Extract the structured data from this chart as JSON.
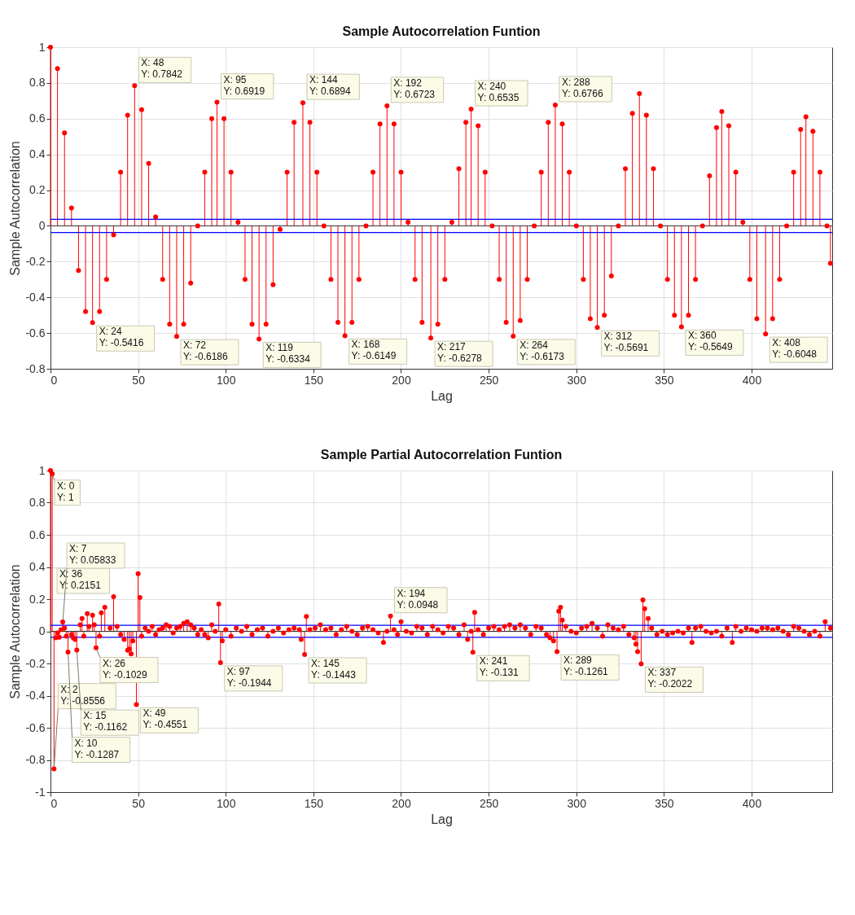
{
  "chart_data": [
    {
      "type": "lollipop",
      "title": "Sample Autocorrelation Funtion",
      "xlabel": "Lag",
      "ylabel": "Sample Autocorrelation",
      "color": "#ff0000",
      "marker": "circle",
      "grid": true,
      "xlim": [
        0,
        446
      ],
      "xticks": [
        0,
        50,
        100,
        150,
        200,
        250,
        300,
        350,
        400
      ],
      "ylim": [
        -0.8,
        1
      ],
      "yticks": [
        -0.8,
        -0.6,
        -0.4,
        -0.2,
        0,
        0.2,
        0.4,
        0.6,
        0.8,
        1
      ],
      "x": [
        0,
        4,
        8,
        12,
        16,
        20,
        24,
        28,
        32,
        36,
        40,
        44,
        48,
        52,
        56,
        60,
        64,
        68,
        72,
        76,
        80,
        84,
        88,
        92,
        95,
        99,
        103,
        107,
        111,
        115,
        119,
        123,
        127,
        131,
        135,
        139,
        144,
        148,
        152,
        156,
        160,
        164,
        168,
        172,
        176,
        180,
        184,
        188,
        192,
        196,
        200,
        204,
        208,
        212,
        217,
        221,
        225,
        229,
        233,
        237,
        240,
        244,
        248,
        252,
        256,
        260,
        264,
        268,
        272,
        276,
        280,
        284,
        288,
        292,
        296,
        300,
        304,
        308,
        312,
        316,
        320,
        324,
        328,
        332,
        336,
        340,
        344,
        348,
        352,
        356,
        360,
        364,
        368,
        372,
        376,
        380,
        383,
        387,
        391,
        395,
        399,
        403,
        408,
        412,
        416,
        420,
        424,
        428,
        431,
        435,
        439,
        443,
        445
      ],
      "values": [
        1,
        0.88,
        0.52,
        0.1,
        -0.25,
        -0.48,
        -0.5416,
        -0.48,
        -0.3,
        -0.05,
        0.3,
        0.62,
        0.7842,
        0.65,
        0.35,
        0.05,
        -0.3,
        -0.55,
        -0.6186,
        -0.55,
        -0.32,
        0,
        0.3,
        0.6,
        0.6919,
        0.6,
        0.3,
        0.02,
        -0.3,
        -0.55,
        -0.6334,
        -0.55,
        -0.33,
        -0.02,
        0.3,
        0.58,
        0.6894,
        0.58,
        0.3,
        0,
        -0.3,
        -0.54,
        -0.6149,
        -0.54,
        -0.3,
        0,
        0.3,
        0.57,
        0.6723,
        0.57,
        0.3,
        0.02,
        -0.3,
        -0.54,
        -0.6278,
        -0.55,
        -0.3,
        0.02,
        0.32,
        0.58,
        0.6535,
        0.56,
        0.3,
        0,
        -0.3,
        -0.54,
        -0.6173,
        -0.53,
        -0.3,
        0,
        0.3,
        0.58,
        0.6766,
        0.57,
        0.3,
        0,
        -0.3,
        -0.52,
        -0.5691,
        -0.5,
        -0.28,
        0,
        0.32,
        0.63,
        0.74,
        0.62,
        0.32,
        0,
        -0.3,
        -0.5,
        -0.5649,
        -0.5,
        -0.3,
        0,
        0.28,
        0.55,
        0.64,
        0.56,
        0.3,
        0.02,
        -0.3,
        -0.52,
        -0.6048,
        -0.52,
        -0.3,
        0,
        0.3,
        0.54,
        0.61,
        0.53,
        0.3,
        0,
        -0.21
      ],
      "ref_lines": [
        {
          "axis": "y",
          "value": 0.037,
          "color": "#0000ff"
        },
        {
          "axis": "y",
          "value": -0.037,
          "color": "#0000ff"
        }
      ],
      "annotations": [
        {
          "text": "X: 24\nY: -0.5416",
          "x": 24,
          "y": -0.5416
        },
        {
          "text": "X: 48\nY: 0.7842",
          "x": 48,
          "y": 0.7842
        },
        {
          "text": "X: 72\nY: -0.6186",
          "x": 72,
          "y": -0.6186
        },
        {
          "text": "X: 95\nY: 0.6919",
          "x": 95,
          "y": 0.6919
        },
        {
          "text": "X: 119\nY: -0.6334",
          "x": 119,
          "y": -0.6334
        },
        {
          "text": "X: 144\nY: 0.6894",
          "x": 144,
          "y": 0.6894
        },
        {
          "text": "X: 168\nY: -0.6149",
          "x": 168,
          "y": -0.6149
        },
        {
          "text": "X: 192\nY: 0.6723",
          "x": 192,
          "y": 0.6723
        },
        {
          "text": "X: 217\nY: -0.6278",
          "x": 217,
          "y": -0.6278
        },
        {
          "text": "X: 240\nY: 0.6535",
          "x": 240,
          "y": 0.6535
        },
        {
          "text": "X: 264\nY: -0.6173",
          "x": 264,
          "y": -0.6173
        },
        {
          "text": "X: 288\nY: 0.6766",
          "x": 288,
          "y": 0.6766
        },
        {
          "text": "X: 312\nY: -0.5691",
          "x": 312,
          "y": -0.5691
        },
        {
          "text": "X: 360\nY: -0.5649",
          "x": 360,
          "y": -0.5649
        },
        {
          "text": "X: 408\nY: -0.6048",
          "x": 408,
          "y": -0.6048
        }
      ]
    },
    {
      "type": "lollipop",
      "title": "Sample Partial Autocorrelation Funtion",
      "xlabel": "Lag",
      "ylabel": "Sample Autocorrelation",
      "color": "#ff0000",
      "marker": "circle",
      "grid": true,
      "xlim": [
        0,
        446
      ],
      "xticks": [
        0,
        50,
        100,
        150,
        200,
        250,
        300,
        350,
        400
      ],
      "ylim": [
        -1,
        1
      ],
      "yticks": [
        -1,
        -0.8,
        -0.6,
        -0.4,
        -0.2,
        0,
        0.2,
        0.4,
        0.6,
        0.8,
        1
      ],
      "x": [
        0,
        1,
        2,
        3,
        4,
        5,
        6,
        7,
        8,
        9,
        10,
        12,
        13,
        14,
        15,
        17,
        18,
        19,
        21,
        22,
        24,
        25,
        26,
        28,
        29,
        31,
        34,
        36,
        38,
        40,
        42,
        44,
        45,
        46,
        47,
        49,
        50,
        51,
        52,
        54,
        56,
        58,
        60,
        62,
        64,
        66,
        68,
        70,
        72,
        74,
        76,
        78,
        80,
        82,
        84,
        86,
        88,
        90,
        92,
        94,
        96,
        97,
        98,
        100,
        103,
        106,
        109,
        112,
        115,
        118,
        121,
        124,
        127,
        130,
        133,
        136,
        139,
        142,
        143,
        145,
        146,
        148,
        151,
        154,
        157,
        160,
        163,
        166,
        169,
        172,
        175,
        178,
        181,
        184,
        187,
        190,
        192,
        194,
        196,
        198,
        200,
        203,
        206,
        209,
        212,
        215,
        218,
        221,
        224,
        227,
        230,
        233,
        236,
        238,
        240,
        241,
        242,
        244,
        247,
        250,
        253,
        256,
        259,
        262,
        265,
        268,
        271,
        274,
        277,
        280,
        283,
        285,
        287,
        289,
        290,
        291,
        292,
        294,
        297,
        300,
        303,
        306,
        309,
        312,
        315,
        318,
        321,
        324,
        327,
        330,
        333,
        334,
        335,
        337,
        338,
        339,
        341,
        343,
        346,
        349,
        352,
        355,
        358,
        361,
        364,
        366,
        368,
        371,
        374,
        377,
        380,
        383,
        386,
        389,
        391,
        394,
        397,
        400,
        403,
        406,
        409,
        412,
        415,
        418,
        421,
        424,
        427,
        430,
        433,
        436,
        439,
        442,
        445
      ],
      "values": [
        1,
        0.98,
        -0.8556,
        -0.04,
        -0.01,
        -0.037,
        0.01,
        0.05833,
        0.02,
        -0.03,
        -0.1287,
        -0.02,
        -0.04,
        -0.05,
        -0.1162,
        0.04,
        0.08,
        -0.03,
        0.11,
        0.03,
        0.1,
        0.04,
        -0.1029,
        -0.03,
        0.115,
        0.15,
        0.02,
        0.2151,
        0.03,
        -0.02,
        -0.05,
        -0.118,
        -0.11,
        -0.14,
        -0.06,
        -0.4551,
        0.358,
        0.21,
        -0.03,
        0.02,
        0,
        0.03,
        -0.02,
        0.01,
        0.02,
        0.04,
        0.03,
        -0.01,
        0.02,
        0.03,
        0.05,
        0.06,
        0.04,
        0.02,
        -0.02,
        0.01,
        -0.02,
        -0.04,
        0.04,
        0,
        0.17,
        -0.1944,
        -0.06,
        0.01,
        -0.03,
        0.02,
        0,
        0.03,
        -0.02,
        0.01,
        0.02,
        -0.03,
        0,
        0.02,
        -0.01,
        0.01,
        0.02,
        0.01,
        -0.05,
        -0.1443,
        0.093,
        0.01,
        0.02,
        0.04,
        0.01,
        0.02,
        -0.02,
        0.01,
        0.03,
        0,
        -0.02,
        0.02,
        0.03,
        0.01,
        -0.01,
        -0.07,
        0,
        0.0948,
        0.01,
        -0.02,
        0.06,
        0,
        -0.01,
        0.03,
        0.02,
        -0.02,
        0.03,
        0.01,
        -0.01,
        0.03,
        0.02,
        -0.02,
        0.04,
        -0.05,
        0,
        -0.131,
        0.118,
        0.01,
        -0.02,
        0.02,
        0.03,
        0.01,
        0.03,
        0.04,
        0.02,
        0.04,
        0.02,
        -0.02,
        0.03,
        0.02,
        -0.02,
        -0.04,
        -0.06,
        -0.1261,
        0.125,
        0.15,
        0.07,
        0.03,
        0,
        -0.01,
        0.02,
        0.03,
        0.05,
        0.02,
        -0.03,
        0.04,
        0.02,
        0.01,
        0.03,
        -0.02,
        -0.04,
        -0.08,
        -0.126,
        -0.2022,
        0.195,
        0.14,
        0.08,
        0.02,
        -0.02,
        0,
        -0.02,
        -0.01,
        0,
        -0.01,
        0.02,
        -0.07,
        0.02,
        0.03,
        0,
        -0.01,
        0,
        -0.03,
        0.02,
        -0.07,
        0.03,
        0,
        0.02,
        0.01,
        0,
        0.02,
        0.02,
        0.01,
        0.02,
        0,
        -0.02,
        0.03,
        0.02,
        0,
        -0.02,
        0,
        -0.03,
        0.06,
        0.02
      ],
      "ref_lines": [
        {
          "axis": "y",
          "value": 0.037,
          "color": "#0000ff"
        },
        {
          "axis": "y",
          "value": -0.037,
          "color": "#0000ff"
        }
      ],
      "annotations": [
        {
          "text": "X: 0\nY: 1",
          "x": 0,
          "y": 1
        },
        {
          "text": "X: 2\nY: -0.8556",
          "x": 2,
          "y": -0.8556
        },
        {
          "text": "X: 7\nY: 0.05833",
          "x": 7,
          "y": 0.05833
        },
        {
          "text": "X: 10\nY: -0.1287",
          "x": 10,
          "y": -0.1287
        },
        {
          "text": "X: 15\nY: -0.1162",
          "x": 15,
          "y": -0.1162
        },
        {
          "text": "X: 26\nY: -0.1029",
          "x": 26,
          "y": -0.1029
        },
        {
          "text": "X: 36\nY: 0.2151",
          "x": 36,
          "y": 0.2151
        },
        {
          "text": "X: 49\nY: -0.4551",
          "x": 49,
          "y": -0.4551
        },
        {
          "text": "X: 97\nY: -0.1944",
          "x": 97,
          "y": -0.1944
        },
        {
          "text": "X: 145\nY: -0.1443",
          "x": 145,
          "y": -0.1443
        },
        {
          "text": "X: 194\nY: 0.0948",
          "x": 194,
          "y": 0.0948
        },
        {
          "text": "X: 241\nY: -0.131",
          "x": 241,
          "y": -0.131
        },
        {
          "text": "X: 289\nY: -0.1261",
          "x": 289,
          "y": -0.1261
        },
        {
          "text": "X: 337\nY: -0.2022",
          "x": 337,
          "y": -0.2022
        }
      ]
    }
  ]
}
